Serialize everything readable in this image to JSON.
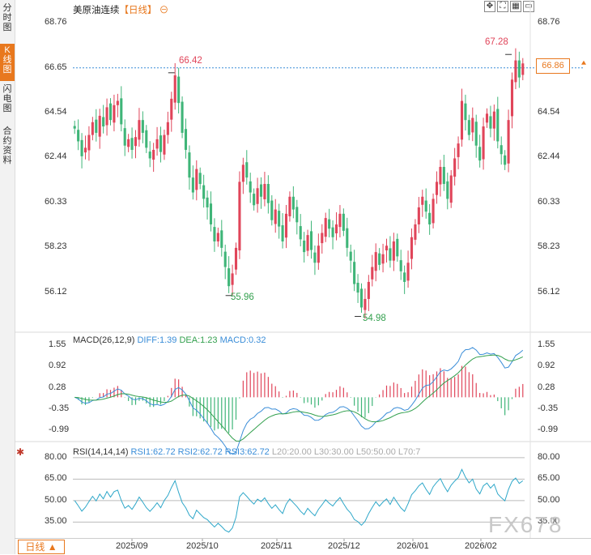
{
  "sidebar": {
    "tabs": [
      {
        "label": "分时图",
        "active": false
      },
      {
        "label": "K线图",
        "active": true
      },
      {
        "label": "闪电图",
        "active": false
      },
      {
        "label": "合约资料",
        "active": false
      }
    ]
  },
  "header": {
    "instrument": "美原油连续",
    "period_tag": "【日线】",
    "toolbar_icons": [
      "expand-icon",
      "fullscreen-icon",
      "sidebar-toggle-icon",
      "window-icon"
    ]
  },
  "price_axis": {
    "ticks": [
      "68.76",
      "66.65",
      "64.54",
      "62.44",
      "60.33",
      "58.23",
      "56.12"
    ],
    "last_price": "66.86"
  },
  "annotations": {
    "high_label": "67.28",
    "peak_label": "66.42",
    "low1_label": "55.96",
    "low2_label": "54.98"
  },
  "macd": {
    "title": "MACD(26,12,9)",
    "diff": "DIFF:1.39",
    "dea": "DEA:1.23",
    "macd": "MACD:0.32",
    "ticks": [
      "1.55",
      "0.92",
      "0.28",
      "-0.35",
      "-0.99"
    ]
  },
  "rsi": {
    "title": "RSI(14,14,14)",
    "rsi1": "RSI1:62.72",
    "rsi2": "RSI2:62.72",
    "rsi3": "RSI3:62.72",
    "l20": "L20:20.00",
    "l30": "L30:30.00",
    "l50": "L50:50.00",
    "l70": "L70:7",
    "ticks": [
      "80.00",
      "65.00",
      "50.00",
      "35.00"
    ]
  },
  "time_axis": [
    "2025/09",
    "2025/10",
    "2025/11",
    "2025/12",
    "2026/01",
    "2026/02"
  ],
  "period_button": "日线 ▲",
  "watermark": "FX678",
  "colors": {
    "up": "#e0455a",
    "down": "#3fb578",
    "accent": "#e8781e",
    "diff": "#3a8dd8",
    "dea": "#33a04e"
  },
  "chart_data": [
    {
      "type": "candlestick",
      "title": "美原油连续",
      "ylim": [
        55.0,
        69.0
      ],
      "close_series": [
        63.8,
        63.2,
        62.5,
        62.9,
        63.5,
        64.1,
        63.6,
        64.4,
        63.9,
        64.8,
        64.2,
        64.9,
        65.1,
        64.0,
        63.0,
        63.3,
        62.8,
        63.4,
        64.2,
        63.6,
        62.9,
        62.4,
        62.8,
        63.3,
        62.7,
        63.5,
        64.1,
        65.2,
        66.3,
        65.0,
        63.6,
        62.8,
        61.5,
        60.8,
        61.9,
        61.2,
        60.5,
        60.1,
        59.3,
        58.5,
        58.9,
        58.2,
        57.3,
        56.4,
        57.0,
        58.2,
        61.3,
        62.1,
        61.5,
        60.8,
        60.2,
        61.0,
        60.6,
        61.2,
        60.3,
        59.5,
        60.0,
        59.2,
        58.5,
        59.8,
        60.6,
        60.0,
        59.4,
        58.6,
        58.0,
        58.8,
        58.1,
        57.5,
        58.3,
        58.9,
        59.6,
        59.1,
        58.7,
        59.3,
        59.8,
        59.0,
        58.2,
        57.6,
        56.5,
        56.1,
        55.4,
        55.8,
        56.6,
        57.3,
        58.0,
        57.4,
        57.9,
        58.3,
        57.6,
        58.5,
        57.8,
        57.1,
        56.6,
        57.5,
        58.7,
        59.3,
        60.1,
        60.6,
        59.9,
        59.3,
        60.5,
        61.3,
        62.0,
        61.2,
        60.5,
        61.6,
        62.4,
        63.1,
        65.1,
        64.2,
        63.5,
        64.3,
        63.0,
        62.3,
        63.9,
        64.5,
        63.8,
        64.6,
        63.2,
        62.6,
        62.1,
        64.2,
        66.1,
        67.0,
        66.2,
        66.86
      ],
      "annotations": {
        "high": 67.28,
        "peak": 66.42,
        "low1": 55.96,
        "low2": 54.98
      }
    },
    {
      "type": "bar+line",
      "title": "MACD(26,12,9)",
      "ylim": [
        -1.2,
        1.7
      ],
      "diff_last": 1.39,
      "dea_last": 1.23,
      "macd_last": 0.32
    },
    {
      "type": "line",
      "title": "RSI(14,14,14)",
      "ylim": [
        25,
        85
      ],
      "last": 62.72
    }
  ]
}
